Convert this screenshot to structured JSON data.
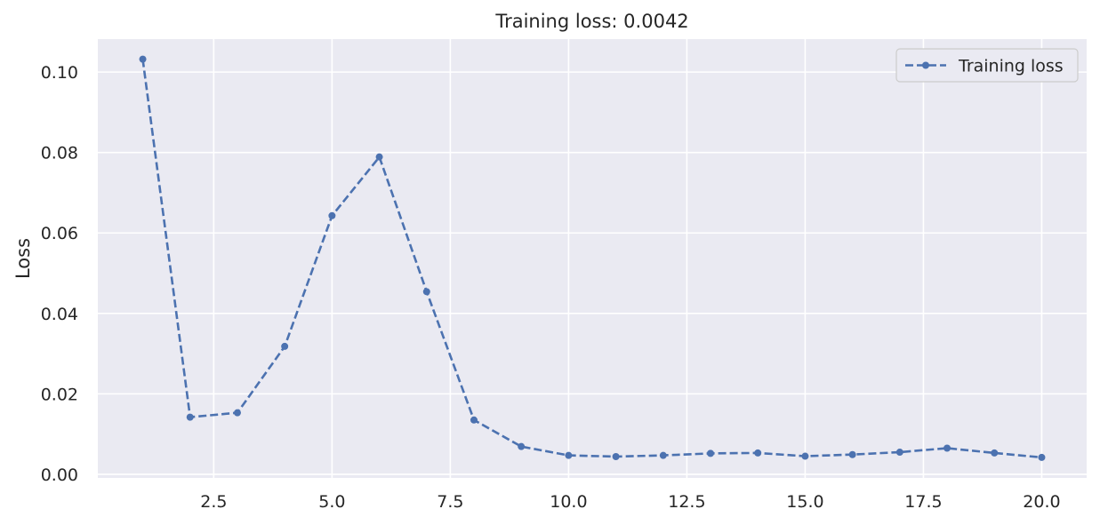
{
  "chart_data": {
    "type": "line",
    "title": "Training loss: 0.0042",
    "xlabel": "",
    "ylabel": "Loss",
    "xlim": [
      0.05,
      20.95
    ],
    "ylim": [
      -0.0009,
      0.1082
    ],
    "x_ticks": [
      2.5,
      5.0,
      7.5,
      10.0,
      12.5,
      15.0,
      17.5,
      20.0
    ],
    "x_tick_labels": [
      "2.5",
      "5.0",
      "7.5",
      "10.0",
      "12.5",
      "15.0",
      "17.5",
      "20.0"
    ],
    "y_ticks": [
      0.0,
      0.02,
      0.04,
      0.06,
      0.08,
      0.1
    ],
    "y_tick_labels": [
      "0.00",
      "0.02",
      "0.04",
      "0.06",
      "0.08",
      "0.10"
    ],
    "grid": true,
    "legend_position": "top-right",
    "series": [
      {
        "name": "Training loss",
        "color": "#4c72b0",
        "line_style": "dashed",
        "marker": "circle",
        "x": [
          1,
          2,
          3,
          4,
          5,
          6,
          7,
          8,
          9,
          10,
          11,
          12,
          13,
          14,
          15,
          16,
          17,
          18,
          19,
          20
        ],
        "y": [
          0.1032,
          0.0142,
          0.0153,
          0.0318,
          0.0643,
          0.0789,
          0.0454,
          0.0135,
          0.0069,
          0.0047,
          0.0044,
          0.0047,
          0.0052,
          0.0053,
          0.0045,
          0.0049,
          0.0055,
          0.0065,
          0.0053,
          0.0042
        ]
      }
    ]
  },
  "colors": {
    "plot_background": "#eaeaf2",
    "grid": "#ffffff",
    "text": "#262626"
  }
}
